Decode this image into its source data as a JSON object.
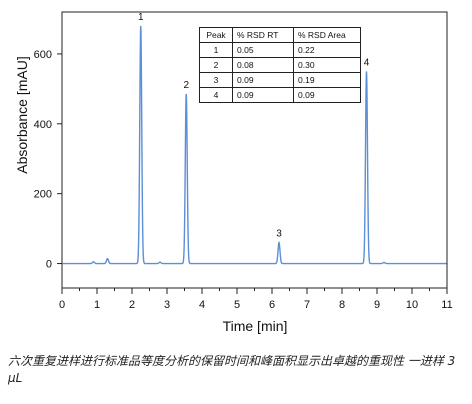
{
  "chart_data": {
    "type": "line",
    "title": "",
    "xlabel": "Time [min]",
    "ylabel": "Absorbance [mAU]",
    "xlim": [
      0,
      11
    ],
    "ylim": [
      -70,
      720
    ],
    "xticks": [
      0,
      1,
      2,
      3,
      4,
      5,
      6,
      7,
      8,
      9,
      10,
      11
    ],
    "yticks": [
      0,
      200,
      400,
      600
    ],
    "line_color": "#5b8fd6",
    "grid": false,
    "peaks": [
      {
        "label": "1",
        "rt": 2.25,
        "height": 680
      },
      {
        "label": "2",
        "rt": 3.55,
        "height": 485
      },
      {
        "label": "3",
        "rt": 6.2,
        "height": 60
      },
      {
        "label": "4",
        "rt": 8.7,
        "height": 550
      }
    ],
    "minor_peaks": [
      {
        "rt": 0.9,
        "height": 5
      },
      {
        "rt": 1.3,
        "height": 14
      },
      {
        "rt": 2.8,
        "height": 4
      },
      {
        "rt": 9.2,
        "height": 3
      }
    ]
  },
  "table": {
    "headers": [
      "Peak",
      "% RSD RT",
      "% RSD Area"
    ],
    "rows": [
      [
        "1",
        "0.05",
        "0.22"
      ],
      [
        "2",
        "0.08",
        "0.30"
      ],
      [
        "3",
        "0.09",
        "0.19"
      ],
      [
        "4",
        "0.09",
        "0.09"
      ]
    ]
  },
  "caption": "六次重复进样进行标准品等度分析的保留时间和峰面积显示出卓越的重现性 一进样 3 μL"
}
